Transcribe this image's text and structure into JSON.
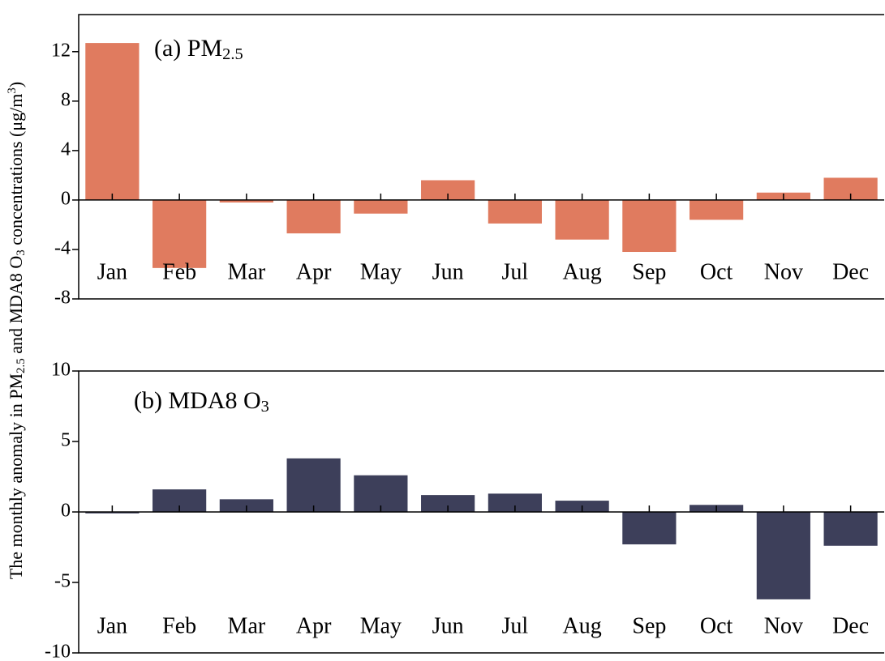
{
  "ylabel": [
    "The monthly anomaly in PM",
    "2.5",
    " and MDA8 O",
    "3",
    " concentrations (μg/m",
    "3",
    ")"
  ],
  "ylabel_styles": [
    "normal",
    "sub",
    "normal",
    "sub",
    "normal",
    "sup",
    "normal"
  ],
  "chart_data": [
    {
      "type": "bar",
      "title": [
        "(a) PM",
        "2.5"
      ],
      "title_styles": [
        "normal",
        "sub"
      ],
      "categories": [
        "Jan",
        "Feb",
        "Mar",
        "Apr",
        "May",
        "Jun",
        "Jul",
        "Aug",
        "Sep",
        "Oct",
        "Nov",
        "Dec"
      ],
      "values": [
        12.7,
        -5.5,
        -0.2,
        -2.7,
        -1.1,
        1.6,
        -1.9,
        -3.2,
        -4.2,
        -1.6,
        0.6,
        1.8
      ],
      "color": "#e07b5f",
      "ylim": [
        -8,
        15
      ],
      "yticks": [
        -8,
        -4,
        0,
        4,
        8,
        12
      ]
    },
    {
      "type": "bar",
      "title": [
        "(b) MDA8 O",
        "3"
      ],
      "title_styles": [
        "normal",
        "sub"
      ],
      "categories": [
        "Jan",
        "Feb",
        "Mar",
        "Apr",
        "May",
        "Jun",
        "Jul",
        "Aug",
        "Sep",
        "Oct",
        "Nov",
        "Dec"
      ],
      "values": [
        -0.1,
        1.6,
        0.9,
        3.8,
        2.6,
        1.2,
        1.3,
        0.8,
        -2.3,
        0.5,
        -6.2,
        -2.4
      ],
      "color": "#3d3f5a",
      "ylim": [
        -10,
        10
      ],
      "yticks": [
        -10,
        -5,
        0,
        5,
        10
      ]
    }
  ]
}
